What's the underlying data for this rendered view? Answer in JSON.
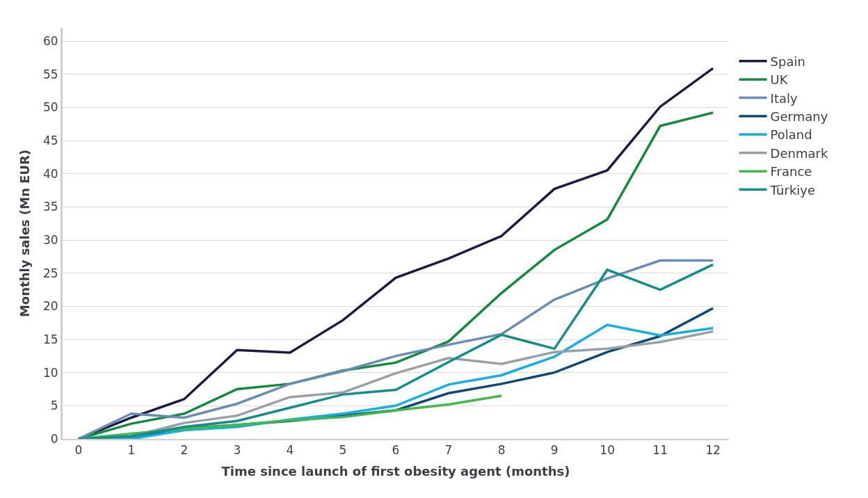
{
  "chart_data": {
    "type": "line",
    "xlabel": "Time since launch of first obesity agent (months)",
    "ylabel": "Monthly sales (Mn EUR)",
    "x": [
      0,
      1,
      2,
      3,
      4,
      5,
      6,
      7,
      8,
      9,
      10,
      11,
      12
    ],
    "xlim": [
      -0.3,
      12.3
    ],
    "xticks": [
      0,
      1,
      2,
      3,
      4,
      5,
      6,
      7,
      8,
      9,
      10,
      11,
      12
    ],
    "ylim": [
      0,
      62
    ],
    "yticks": [
      0,
      5,
      10,
      15,
      20,
      25,
      30,
      35,
      40,
      45,
      50,
      55,
      60
    ],
    "grid": "y",
    "legend": "right",
    "marker": "none",
    "line_style": "solid",
    "series": [
      {
        "name": "Spain",
        "color": "#1b1a44",
        "values": [
          0,
          3.2,
          6.0,
          13.4,
          13.0,
          17.9,
          24.3,
          27.2,
          30.6,
          37.7,
          40.5,
          50.1,
          55.9
        ]
      },
      {
        "name": "UK",
        "color": "#108a3c",
        "values": [
          0,
          2.3,
          3.8,
          7.5,
          8.3,
          10.3,
          11.5,
          14.7,
          22.0,
          28.5,
          33.1,
          47.2,
          49.2
        ]
      },
      {
        "name": "Italy",
        "color": "#6a8cb4",
        "values": [
          0,
          3.8,
          3.2,
          5.3,
          8.3,
          10.2,
          12.5,
          14.2,
          15.8,
          21.0,
          24.2,
          26.9,
          26.9
        ]
      },
      {
        "name": "Germany",
        "color": "#0b4a78",
        "values": [
          0,
          0,
          1.6,
          2.1,
          2.7,
          3.5,
          4.3,
          6.9,
          8.3,
          10.0,
          13.1,
          15.5,
          19.7
        ]
      },
      {
        "name": "Poland",
        "color": "#12aee6",
        "values": [
          0,
          0,
          1.3,
          1.8,
          2.9,
          3.8,
          5.0,
          8.2,
          9.6,
          12.4,
          17.2,
          15.6,
          16.7
        ]
      },
      {
        "name": "Denmark",
        "color": "#9a9ea6",
        "values": [
          0,
          0.4,
          2.4,
          3.5,
          6.3,
          7.0,
          9.9,
          12.2,
          11.3,
          13.1,
          13.6,
          14.6,
          16.2
        ]
      },
      {
        "name": "France",
        "color": "#3fba4a",
        "values": [
          0,
          0.8,
          1.5,
          2.1,
          2.8,
          3.3,
          4.3,
          5.2,
          6.5,
          null,
          null,
          null,
          null
        ]
      },
      {
        "name": "Türkiye",
        "color": "#0f8f8a",
        "values": [
          0,
          0.4,
          1.8,
          2.7,
          4.7,
          6.7,
          7.4,
          11.6,
          15.7,
          13.6,
          25.5,
          22.5,
          26.3
        ]
      }
    ]
  }
}
